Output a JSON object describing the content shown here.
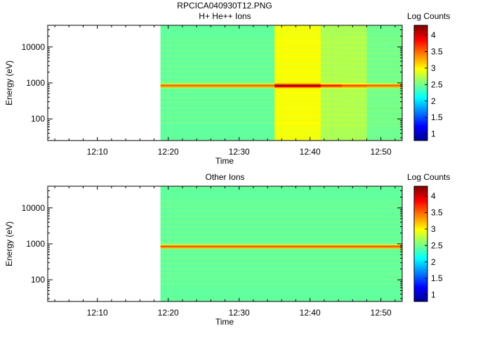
{
  "file_title": "RPCICA040930T12.PNG",
  "colormap": [
    "#00008f",
    "#0000ff",
    "#0080ff",
    "#00ffff",
    "#80ff80",
    "#ffff00",
    "#ff8000",
    "#ff0000",
    "#800000"
  ],
  "chart_data": [
    {
      "type": "heatmap",
      "title": "H+ He++ Ions",
      "xlabel": "Time",
      "ylabel": "Energy (eV)",
      "x_ticks": [
        "12:10",
        "12:20",
        "12:30",
        "12:40",
        "12:50"
      ],
      "x_tick_minutes": [
        10,
        20,
        30,
        40,
        50
      ],
      "xlim_minutes": [
        3,
        53
      ],
      "y_scale": "log",
      "y_ticks": [
        "100",
        "1000",
        "10000"
      ],
      "y_tick_values": [
        100,
        1000,
        10000
      ],
      "ylim": [
        25,
        40000
      ],
      "colorbar_label": "Log Counts",
      "colorbar_ticks": [
        "1",
        "1.5",
        "2",
        "2.5",
        "3",
        "3.5",
        "4"
      ],
      "colorbar_tick_values": [
        1,
        1.5,
        2,
        2.5,
        3,
        3.5,
        4
      ],
      "colorbar_range": [
        0.8,
        4.3
      ],
      "data_start_minute": 18.9,
      "segments": [
        {
          "start": 18.9,
          "end": 35.0,
          "base": 2.45,
          "low_end": 2.05,
          "high_end": 2.1,
          "peak": 3.65
        },
        {
          "start": 35.0,
          "end": 41.5,
          "base": 2.95,
          "low_end": 2.9,
          "high_end": 2.75,
          "peak": 4.3
        },
        {
          "start": 41.5,
          "end": 44.5,
          "base": 2.7,
          "low_end": 2.65,
          "high_end": 2.5,
          "peak": 3.9
        },
        {
          "start": 44.5,
          "end": 48.0,
          "base": 2.7,
          "low_end": 2.6,
          "high_end": 2.45,
          "peak": 3.7
        },
        {
          "start": 48.0,
          "end": 53.0,
          "base": 2.5,
          "low_end": 2.0,
          "high_end": 2.35,
          "peak": 3.65
        }
      ]
    },
    {
      "type": "heatmap",
      "title": "Other Ions",
      "xlabel": "Time",
      "ylabel": "Energy (eV)",
      "x_ticks": [
        "12:10",
        "12:20",
        "12:30",
        "12:40",
        "12:50"
      ],
      "x_tick_minutes": [
        10,
        20,
        30,
        40,
        50
      ],
      "xlim_minutes": [
        3,
        53
      ],
      "y_scale": "log",
      "y_ticks": [
        "100",
        "1000",
        "10000"
      ],
      "y_tick_values": [
        100,
        1000,
        10000
      ],
      "ylim": [
        25,
        40000
      ],
      "colorbar_label": "Log Counts",
      "colorbar_ticks": [
        "1",
        "1.5",
        "2",
        "2.5",
        "3",
        "3.5",
        "4"
      ],
      "colorbar_tick_values": [
        1,
        1.5,
        2,
        2.5,
        3,
        3.5,
        4
      ],
      "colorbar_range": [
        0.8,
        4.3
      ],
      "data_start_minute": 18.9,
      "segments": [
        {
          "start": 18.9,
          "end": 53.0,
          "base": 2.45,
          "low_end": 2.0,
          "high_end": 2.1,
          "peak": 3.7
        }
      ]
    }
  ]
}
